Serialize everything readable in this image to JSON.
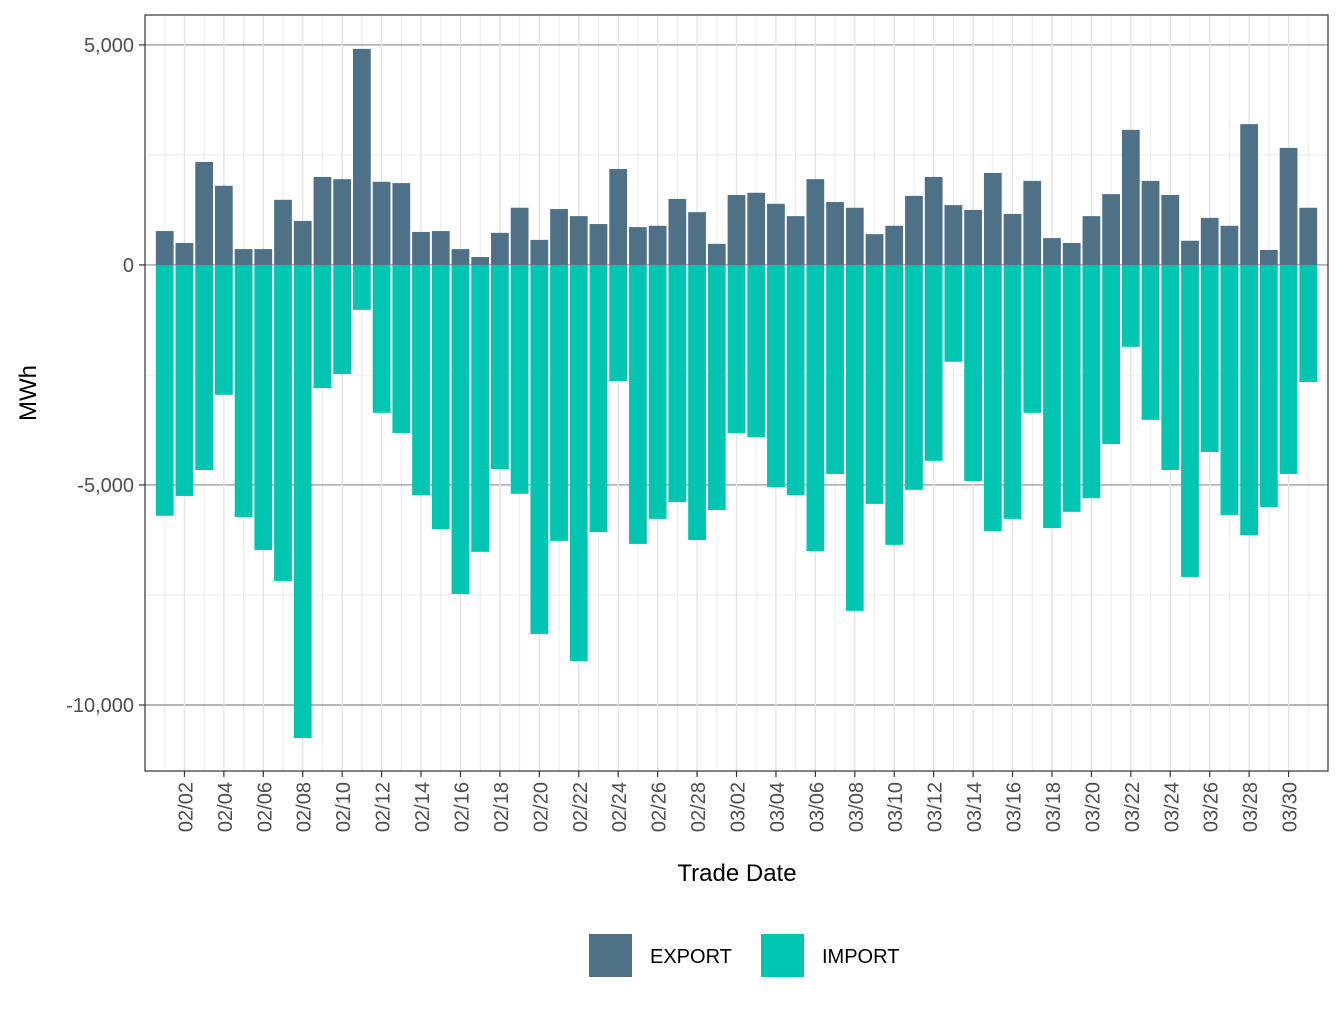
{
  "chart_data": {
    "type": "bar",
    "x_label": "Trade Date",
    "y_label": "MWh",
    "categories": [
      "02/01",
      "02/02",
      "02/03",
      "02/04",
      "02/05",
      "02/06",
      "02/07",
      "02/08",
      "02/09",
      "02/10",
      "02/11",
      "02/12",
      "02/13",
      "02/14",
      "02/15",
      "02/16",
      "02/17",
      "02/18",
      "02/19",
      "02/20",
      "02/21",
      "02/22",
      "02/23",
      "02/24",
      "02/25",
      "02/26",
      "02/27",
      "02/28",
      "03/01",
      "03/02",
      "03/03",
      "03/04",
      "03/05",
      "03/06",
      "03/07",
      "03/08",
      "03/09",
      "03/10",
      "03/11",
      "03/12",
      "03/13",
      "03/14",
      "03/15",
      "03/16",
      "03/17",
      "03/18",
      "03/19",
      "03/20",
      "03/21",
      "03/22",
      "03/23",
      "03/24",
      "03/25",
      "03/26",
      "03/27",
      "03/28",
      "03/29",
      "03/30",
      "03/31"
    ],
    "xticks": [
      "02/02",
      "02/04",
      "02/06",
      "02/08",
      "02/10",
      "02/12",
      "02/14",
      "02/16",
      "02/18",
      "02/20",
      "02/22",
      "02/24",
      "02/26",
      "02/28",
      "03/02",
      "03/04",
      "03/06",
      "03/08",
      "03/10",
      "03/12",
      "03/14",
      "03/16",
      "03/18",
      "03/20",
      "03/22",
      "03/24",
      "03/26",
      "03/28",
      "03/30"
    ],
    "series": [
      {
        "name": "EXPORT",
        "color": "#4e7187",
        "values": [
          770,
          500,
          2340,
          1800,
          360,
          360,
          1480,
          1000,
          2000,
          1950,
          4910,
          1890,
          1860,
          750,
          770,
          360,
          180,
          730,
          1300,
          570,
          1270,
          1110,
          930,
          2180,
          860,
          890,
          1500,
          1200,
          480,
          1590,
          1640,
          1390,
          1110,
          1950,
          1430,
          1300,
          700,
          890,
          1570,
          2000,
          1360,
          1250,
          2090,
          1160,
          1910,
          610,
          500,
          1110,
          1610,
          3070,
          1910,
          1590,
          550,
          1070,
          890,
          3200,
          340,
          2660,
          1300
        ]
      },
      {
        "name": "IMPORT",
        "color": "#00c5b0",
        "values": [
          -5700,
          -5250,
          -4660,
          -2950,
          -5730,
          -6480,
          -7180,
          -10750,
          -2800,
          -2480,
          -1020,
          -3360,
          -3820,
          -5230,
          -6000,
          -7480,
          -6520,
          -4640,
          -5200,
          -8390,
          -6270,
          -9000,
          -6070,
          -2640,
          -6340,
          -5770,
          -5390,
          -6250,
          -5570,
          -3820,
          -3910,
          -5050,
          -5230,
          -6500,
          -4750,
          -7860,
          -5430,
          -6360,
          -5110,
          -4450,
          -2200,
          -4910,
          -6050,
          -5770,
          -3360,
          -5980,
          -5610,
          -5300,
          -4070,
          -1860,
          -3520,
          -4660,
          -7090,
          -4250,
          -5680,
          -6140,
          -5500,
          -4750,
          -2660
        ]
      }
    ],
    "ylim": [
      -11500,
      5680
    ],
    "yticks": [
      {
        "value": 5000,
        "label": "5,000"
      },
      0,
      {
        "value": -5000,
        "label": "-5,000"
      },
      {
        "value": -10000,
        "label": "-10,000"
      }
    ],
    "grid": true,
    "legend": "bottom"
  }
}
